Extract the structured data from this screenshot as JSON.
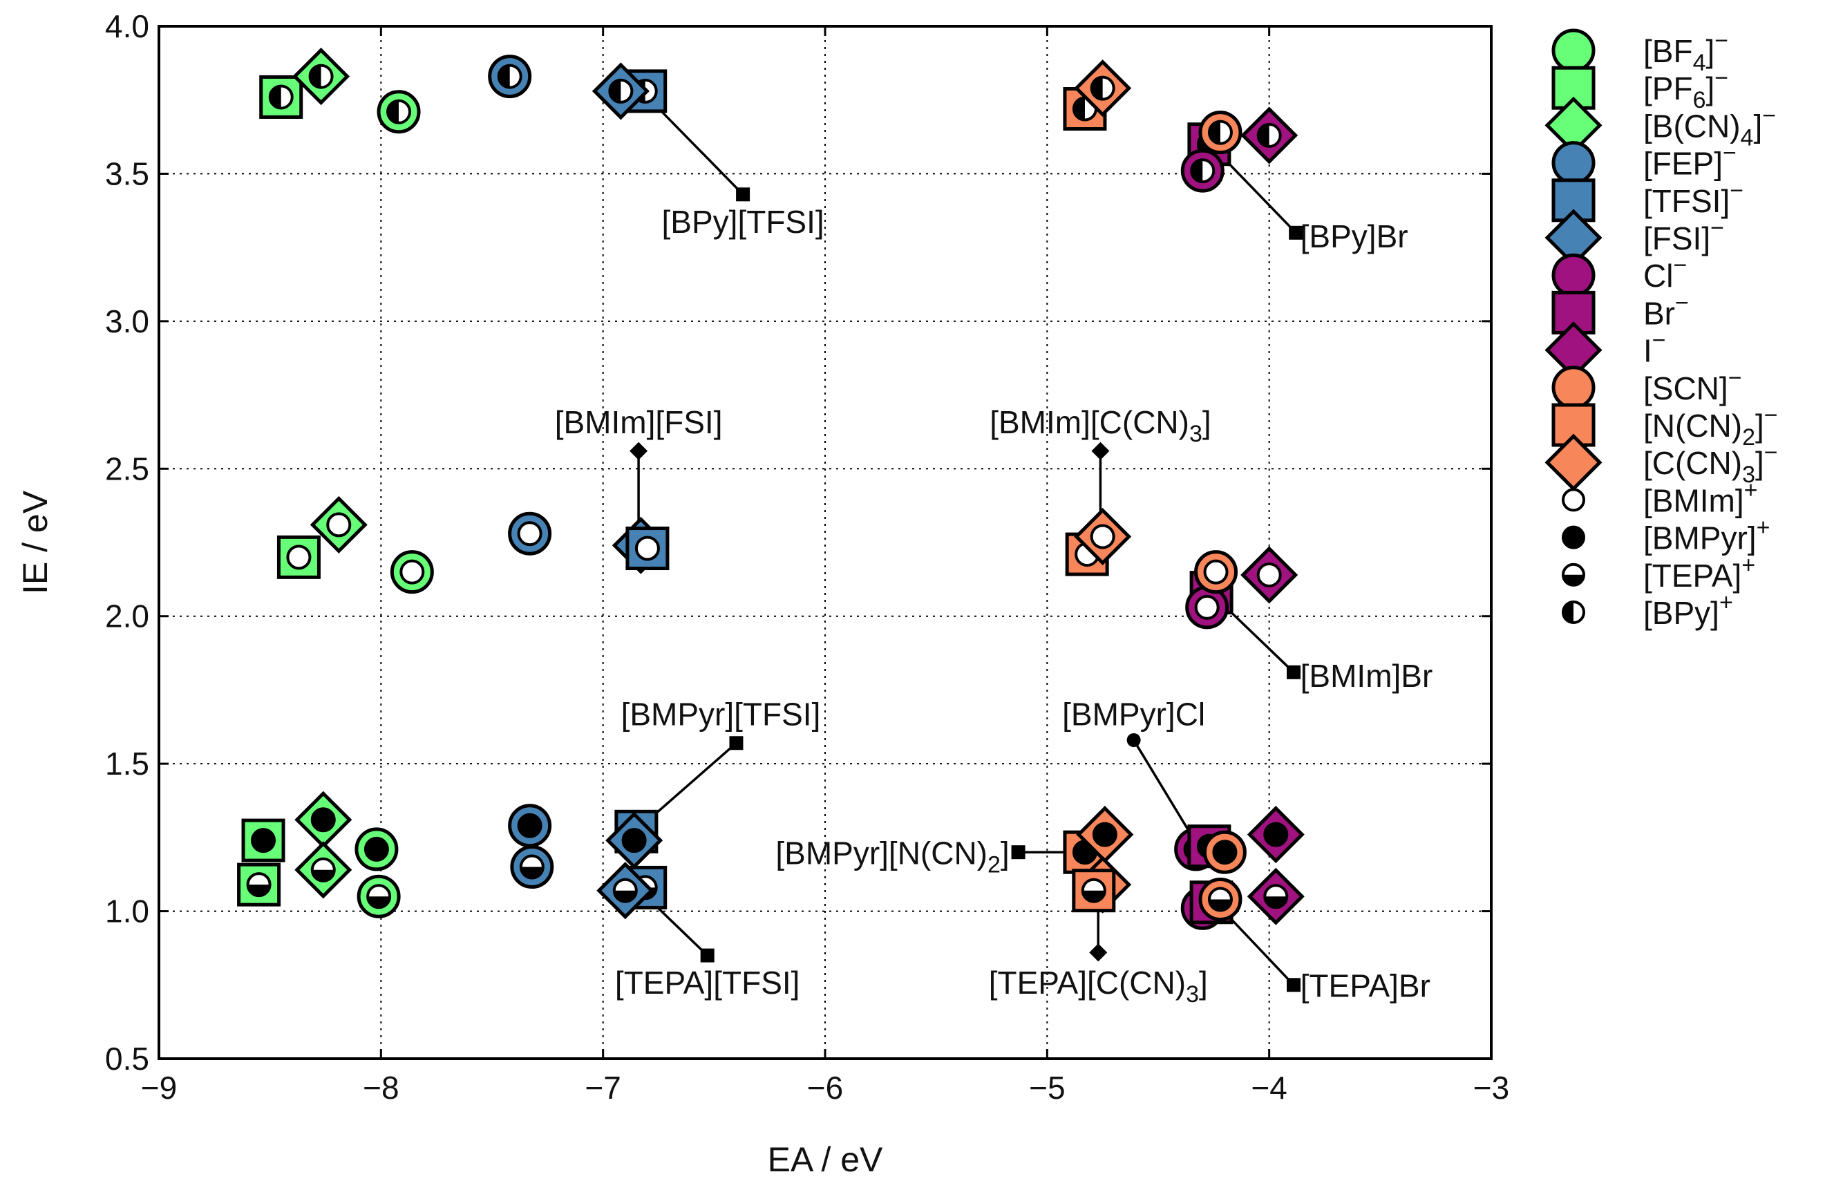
{
  "chart_data": {
    "type": "scatter",
    "xlabel": "EA / eV",
    "ylabel": "IE / eV",
    "xlim": [
      -9,
      -3
    ],
    "ylim": [
      0.5,
      4.0
    ],
    "xticks": [
      -9,
      -8,
      -7,
      -6,
      -5,
      -4,
      -3
    ],
    "yticks": [
      0.5,
      1.0,
      1.5,
      2.0,
      2.5,
      3.0,
      3.5,
      4.0
    ],
    "xtick_labels": [
      "−9",
      "−8",
      "−7",
      "−6",
      "−5",
      "−4",
      "−3"
    ],
    "ytick_labels": [
      "0.5",
      "1.0",
      "1.5",
      "2.0",
      "2.5",
      "3.0",
      "3.5",
      "4.0"
    ],
    "grid": true,
    "legend_placement": "outside-right",
    "anion_legend": [
      {
        "key": "BF4",
        "base": "[BF",
        "sub": "4",
        "post": "]",
        "sup": "−",
        "marker": "circle",
        "color": "#66ff77"
      },
      {
        "key": "PF6",
        "base": "[PF",
        "sub": "6",
        "post": "]",
        "sup": "−",
        "marker": "square",
        "color": "#66ff77"
      },
      {
        "key": "BCN4",
        "base": "[B(CN)",
        "sub": "4",
        "post": "]",
        "sup": "−",
        "marker": "diamond",
        "color": "#66ff77"
      },
      {
        "key": "FEP",
        "base": "[FEP]",
        "sub": "",
        "post": "",
        "sup": "−",
        "marker": "circle",
        "color": "#4682b4"
      },
      {
        "key": "TFSI",
        "base": "[TFSI]",
        "sub": "",
        "post": "",
        "sup": "−",
        "marker": "square",
        "color": "#4682b4"
      },
      {
        "key": "FSI",
        "base": "[FSI]",
        "sub": "",
        "post": "",
        "sup": "−",
        "marker": "diamond",
        "color": "#4682b4"
      },
      {
        "key": "Cl",
        "base": "Cl",
        "sub": "",
        "post": "",
        "sup": "−",
        "marker": "circle",
        "color": "#a0127f"
      },
      {
        "key": "Br",
        "base": "Br",
        "sub": "",
        "post": "",
        "sup": "−",
        "marker": "square",
        "color": "#a0127f"
      },
      {
        "key": "I",
        "base": "I",
        "sub": "",
        "post": "",
        "sup": "−",
        "marker": "diamond",
        "color": "#a0127f"
      },
      {
        "key": "SCN",
        "base": "[SCN]",
        "sub": "",
        "post": "",
        "sup": "−",
        "marker": "circle",
        "color": "#f7865a"
      },
      {
        "key": "NCN2",
        "base": "[N(CN)",
        "sub": "2",
        "post": "]",
        "sup": "−",
        "marker": "square",
        "color": "#f7865a"
      },
      {
        "key": "CCN3",
        "base": "[C(CN)",
        "sub": "3",
        "post": "]",
        "sup": "−",
        "marker": "diamond",
        "color": "#f7865a"
      }
    ],
    "cation_legend": [
      {
        "key": "BMIm",
        "base": "[BMIm]",
        "sup": "+",
        "fill": "open"
      },
      {
        "key": "BMPyr",
        "base": "[BMPyr]",
        "sup": "+",
        "fill": "full"
      },
      {
        "key": "TEPA",
        "base": "[TEPA]",
        "sup": "+",
        "fill": "bottom"
      },
      {
        "key": "BPy",
        "base": "[BPy]",
        "sup": "+",
        "fill": "left"
      }
    ],
    "points": [
      {
        "anion": "BF4",
        "cation": "BPy",
        "x": -7.92,
        "y": 3.71
      },
      {
        "anion": "PF6",
        "cation": "BPy",
        "x": -8.45,
        "y": 3.76
      },
      {
        "anion": "BCN4",
        "cation": "BPy",
        "x": -8.27,
        "y": 3.83
      },
      {
        "anion": "FEP",
        "cation": "BPy",
        "x": -7.42,
        "y": 3.83
      },
      {
        "anion": "TFSI",
        "cation": "BPy",
        "x": -6.81,
        "y": 3.78
      },
      {
        "anion": "FSI",
        "cation": "BPy",
        "x": -6.92,
        "y": 3.78
      },
      {
        "anion": "NCN2",
        "cation": "BPy",
        "x": -4.83,
        "y": 3.72
      },
      {
        "anion": "CCN3",
        "cation": "BPy",
        "x": -4.75,
        "y": 3.79
      },
      {
        "anion": "Br",
        "cation": "BPy",
        "x": -4.27,
        "y": 3.6
      },
      {
        "anion": "Cl",
        "cation": "BPy",
        "x": -4.3,
        "y": 3.51
      },
      {
        "anion": "I",
        "cation": "BPy",
        "x": -4.0,
        "y": 3.63
      },
      {
        "anion": "SCN",
        "cation": "BPy",
        "x": -4.22,
        "y": 3.64
      },
      {
        "anion": "BF4",
        "cation": "BMIm",
        "x": -7.86,
        "y": 2.15
      },
      {
        "anion": "PF6",
        "cation": "BMIm",
        "x": -8.37,
        "y": 2.2
      },
      {
        "anion": "BCN4",
        "cation": "BMIm",
        "x": -8.19,
        "y": 2.31
      },
      {
        "anion": "FEP",
        "cation": "BMIm",
        "x": -7.33,
        "y": 2.28
      },
      {
        "anion": "FSI",
        "cation": "BMIm",
        "x": -6.83,
        "y": 2.24
      },
      {
        "anion": "TFSI",
        "cation": "BMIm",
        "x": -6.8,
        "y": 2.23
      },
      {
        "anion": "NCN2",
        "cation": "BMIm",
        "x": -4.82,
        "y": 2.21
      },
      {
        "anion": "CCN3",
        "cation": "BMIm",
        "x": -4.75,
        "y": 2.27
      },
      {
        "anion": "Br",
        "cation": "BMIm",
        "x": -4.26,
        "y": 2.08
      },
      {
        "anion": "Cl",
        "cation": "BMIm",
        "x": -4.28,
        "y": 2.03
      },
      {
        "anion": "SCN",
        "cation": "BMIm",
        "x": -4.24,
        "y": 2.15
      },
      {
        "anion": "I",
        "cation": "BMIm",
        "x": -4.0,
        "y": 2.14
      },
      {
        "anion": "BF4",
        "cation": "BMPyr",
        "x": -8.02,
        "y": 1.21
      },
      {
        "anion": "PF6",
        "cation": "BMPyr",
        "x": -8.53,
        "y": 1.24
      },
      {
        "anion": "BCN4",
        "cation": "BMPyr",
        "x": -8.26,
        "y": 1.31
      },
      {
        "anion": "FEP",
        "cation": "BMPyr",
        "x": -7.33,
        "y": 1.29
      },
      {
        "anion": "TFSI",
        "cation": "BMPyr",
        "x": -6.85,
        "y": 1.27
      },
      {
        "anion": "FSI",
        "cation": "BMPyr",
        "x": -6.86,
        "y": 1.24
      },
      {
        "anion": "NCN2",
        "cation": "BMPyr",
        "x": -4.83,
        "y": 1.2
      },
      {
        "anion": "CCN3",
        "cation": "BMPyr",
        "x": -4.74,
        "y": 1.26
      },
      {
        "anion": "Cl",
        "cation": "BMPyr",
        "x": -4.33,
        "y": 1.21
      },
      {
        "anion": "Br",
        "cation": "BMPyr",
        "x": -4.27,
        "y": 1.22
      },
      {
        "anion": "SCN",
        "cation": "BMPyr",
        "x": -4.2,
        "y": 1.2
      },
      {
        "anion": "I",
        "cation": "BMPyr",
        "x": -3.97,
        "y": 1.26
      },
      {
        "anion": "BF4",
        "cation": "TEPA",
        "x": -8.01,
        "y": 1.05
      },
      {
        "anion": "PF6",
        "cation": "TEPA",
        "x": -8.55,
        "y": 1.09
      },
      {
        "anion": "BCN4",
        "cation": "TEPA",
        "x": -8.26,
        "y": 1.14
      },
      {
        "anion": "FEP",
        "cation": "TEPA",
        "x": -7.32,
        "y": 1.15
      },
      {
        "anion": "TFSI",
        "cation": "TEPA",
        "x": -6.81,
        "y": 1.08
      },
      {
        "anion": "FSI",
        "cation": "TEPA",
        "x": -6.9,
        "y": 1.07
      },
      {
        "anion": "CCN3",
        "cation": "TEPA",
        "x": -4.75,
        "y": 1.09
      },
      {
        "anion": "NCN2",
        "cation": "TEPA",
        "x": -4.79,
        "y": 1.07
      },
      {
        "anion": "Cl",
        "cation": "TEPA",
        "x": -4.3,
        "y": 1.01
      },
      {
        "anion": "Br",
        "cation": "TEPA",
        "x": -4.26,
        "y": 1.03
      },
      {
        "anion": "SCN",
        "cation": "TEPA",
        "x": -4.22,
        "y": 1.04
      },
      {
        "anion": "I",
        "cation": "TEPA",
        "x": -3.97,
        "y": 1.05
      }
    ],
    "annotations": [
      {
        "base": "[BPy][TFSI]",
        "sub": "",
        "post": "",
        "marker": "square",
        "from": [
          -6.8,
          3.76
        ],
        "to": [
          -6.37,
          3.43
        ],
        "anchor": "middle",
        "label_at": [
          -6.37,
          3.3
        ]
      },
      {
        "base": "[BPy]Br",
        "sub": "",
        "post": "",
        "marker": "square",
        "from": [
          -4.24,
          3.58
        ],
        "to": [
          -3.88,
          3.3
        ],
        "anchor": "start",
        "label_at": [
          -3.86,
          3.25
        ]
      },
      {
        "base": "[BMIm][FSI]",
        "sub": "",
        "post": "",
        "marker": "diamond",
        "from": [
          -6.84,
          2.26
        ],
        "to": [
          -6.84,
          2.56
        ],
        "anchor": "middle",
        "label_at": [
          -6.84,
          2.62
        ]
      },
      {
        "base": "[BMIm][C(CN)",
        "sub": "3",
        "post": "]",
        "marker": "diamond",
        "from": [
          -4.76,
          2.29
        ],
        "to": [
          -4.76,
          2.56
        ],
        "anchor": "middle",
        "label_at": [
          -4.76,
          2.62
        ]
      },
      {
        "base": "[BMIm]Br",
        "sub": "",
        "post": "",
        "marker": "square",
        "from": [
          -4.25,
          2.07
        ],
        "to": [
          -3.89,
          1.81
        ],
        "anchor": "start",
        "label_at": [
          -3.86,
          1.76
        ]
      },
      {
        "base": "[BMPyr][TFSI]",
        "sub": "",
        "post": "",
        "marker": "square",
        "from": [
          -6.84,
          1.28
        ],
        "to": [
          -6.4,
          1.57
        ],
        "anchor": "middle",
        "label_at": [
          -6.47,
          1.63
        ]
      },
      {
        "base": "[BMPyr]Cl",
        "sub": "",
        "post": "",
        "marker": "circle",
        "from": [
          -4.32,
          1.22
        ],
        "to": [
          -4.61,
          1.58
        ],
        "anchor": "middle",
        "label_at": [
          -4.61,
          1.63
        ]
      },
      {
        "base": "[BMPyr][N(CN)",
        "sub": "2",
        "post": "]",
        "marker": "square",
        "from": [
          -4.85,
          1.2
        ],
        "to": [
          -5.13,
          1.2
        ],
        "anchor": "end",
        "label_at": [
          -5.17,
          1.16
        ]
      },
      {
        "base": "[TEPA][TFSI]",
        "sub": "",
        "post": "",
        "marker": "square",
        "from": [
          -6.82,
          1.06
        ],
        "to": [
          -6.53,
          0.85
        ],
        "anchor": "middle",
        "label_at": [
          -6.53,
          0.72
        ]
      },
      {
        "base": "[TEPA][C(CN)",
        "sub": "3",
        "post": "]",
        "marker": "diamond",
        "from": [
          -4.77,
          1.07
        ],
        "to": [
          -4.77,
          0.86
        ],
        "anchor": "middle",
        "label_at": [
          -4.77,
          0.72
        ]
      },
      {
        "base": "[TEPA]Br",
        "sub": "",
        "post": "",
        "marker": "square",
        "from": [
          -4.23,
          1.02
        ],
        "to": [
          -3.89,
          0.75
        ],
        "anchor": "start",
        "label_at": [
          -3.86,
          0.71
        ]
      }
    ]
  }
}
